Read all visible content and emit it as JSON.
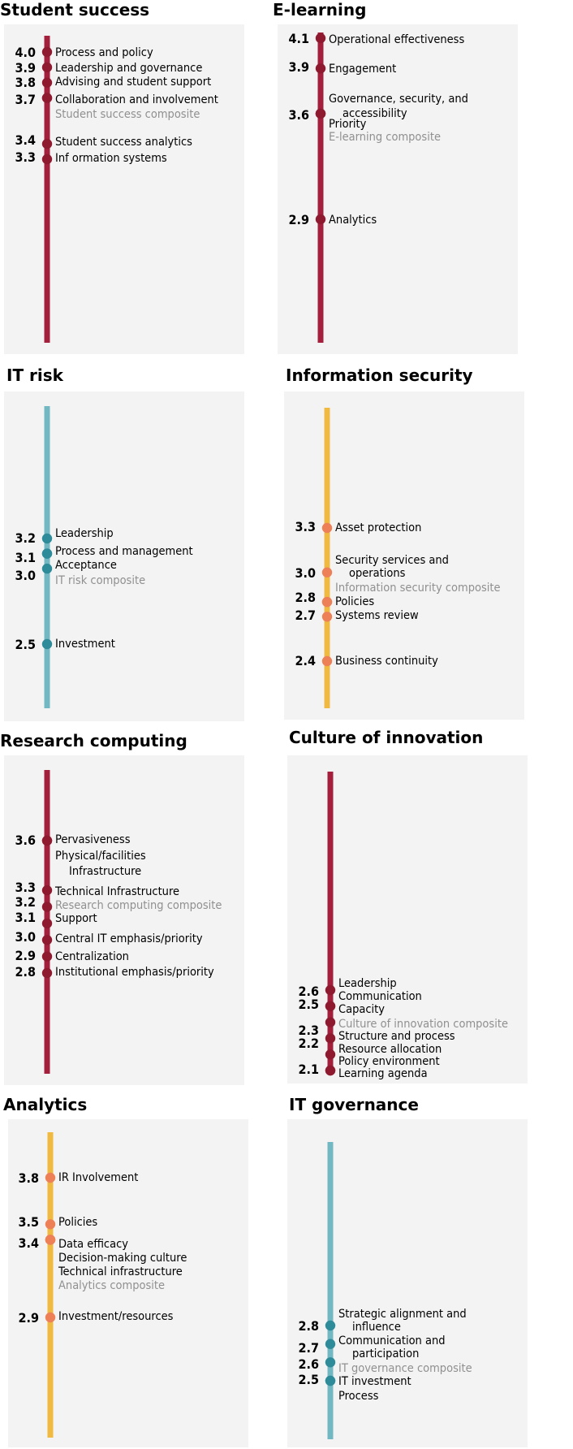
{
  "chart_data": [
    {
      "type": "dot-scale",
      "title": "Student success",
      "line_color": "#a31f3b",
      "dot_color": "#8f1a30",
      "points": [
        {
          "label": "Process and policy",
          "value": 4.0,
          "value_text": "4.0"
        },
        {
          "label": "Leadership and governance",
          "value": 3.9,
          "value_text": "3.9"
        },
        {
          "label": "Advising and student support",
          "value": 3.8,
          "value_text": "3.8"
        },
        {
          "label": "Collaboration and involvement",
          "value": 3.7,
          "value_text": "3.7"
        },
        {
          "label": "Student success composite",
          "value": 3.7,
          "composite": true
        },
        {
          "label": "Student success analytics",
          "value": 3.4,
          "value_text": "3.4"
        },
        {
          "label": "Inf ormation systems",
          "value": 3.3,
          "value_text": "3.3"
        }
      ]
    },
    {
      "type": "dot-scale",
      "title": "E-learning",
      "line_color": "#a31f3b",
      "dot_color": "#8f1a30",
      "points": [
        {
          "label": "Operational effectiveness",
          "value": 4.1,
          "value_text": "4.1"
        },
        {
          "label": "Engagement",
          "value": 3.9,
          "value_text": "3.9"
        },
        {
          "label": "Governance, security, and",
          "label2": "accessibility",
          "value": 3.6,
          "value_text": "3.6"
        },
        {
          "label": "Priority",
          "value": 3.6
        },
        {
          "label": "E-learning composite",
          "value": 3.6,
          "composite": true
        },
        {
          "label": "Analytics",
          "value": 2.9,
          "value_text": "2.9"
        }
      ]
    },
    {
      "type": "dot-scale",
      "title": "IT risk",
      "line_color": "#72b8c3",
      "dot_color": "#2e8c9a",
      "points": [
        {
          "label": "Leadership",
          "value": 3.2,
          "value_text": "3.2"
        },
        {
          "label": "Process and management",
          "value": 3.1,
          "value_text": "3.1"
        },
        {
          "label": "Acceptance",
          "value": 3.1
        },
        {
          "label": "IT risk composite",
          "value": 3.0,
          "value_text": "3.0",
          "composite": true
        },
        {
          "label": "Investment",
          "value": 2.5,
          "value_text": "2.5"
        }
      ]
    },
    {
      "type": "dot-scale",
      "title": "Information security",
      "line_color": "#f0b940",
      "dot_color": "#ee8058",
      "points": [
        {
          "label": "Asset protection",
          "value": 3.3,
          "value_text": "3.3"
        },
        {
          "label": "Security services and",
          "label2": "operations",
          "value": 3.0,
          "value_text": "3.0"
        },
        {
          "label": "Information security composite",
          "value": 2.8,
          "value_text": "2.8",
          "composite": true
        },
        {
          "label": "Policies",
          "value": 2.8
        },
        {
          "label": "Systems review",
          "value": 2.7,
          "value_text": "2.7"
        },
        {
          "label": "Business continuity",
          "value": 2.4,
          "value_text": "2.4"
        }
      ]
    },
    {
      "type": "dot-scale",
      "title": "Research computing",
      "line_color": "#a31f3b",
      "dot_color": "#8f1a30",
      "points": [
        {
          "label": "Pervasiveness",
          "value": 3.6,
          "value_text": "3.6"
        },
        {
          "label": "Physical/facilities",
          "label2": "Infrastructure",
          "value": 3.6
        },
        {
          "label": "Technical Infrastructure",
          "value": 3.3,
          "value_text": "3.3"
        },
        {
          "label": "Research computing composite",
          "value": 3.2,
          "value_text": "3.2",
          "composite": true
        },
        {
          "label": "Support",
          "value": 3.1,
          "value_text": "3.1"
        },
        {
          "label": "Central IT emphasis/priority",
          "value": 3.0,
          "value_text": "3.0"
        },
        {
          "label": "Centralization",
          "value": 2.9,
          "value_text": "2.9"
        },
        {
          "label": "Institutional emphasis/priority",
          "value": 2.8,
          "value_text": "2.8"
        }
      ]
    },
    {
      "type": "dot-scale",
      "title": "Culture of innovation",
      "line_color": "#a31f3b",
      "dot_color": "#8f1a30",
      "points": [
        {
          "label": "Leadership",
          "value": 2.6,
          "value_text": "2.6"
        },
        {
          "label": "Communication",
          "value": 2.5,
          "value_text": "2.5"
        },
        {
          "label": "Capacity",
          "value": 2.5
        },
        {
          "label": "Culture of innovation composite",
          "value": 2.4,
          "composite": true
        },
        {
          "label": "Structure and process",
          "value": 2.3,
          "value_text": "2.3"
        },
        {
          "label": "Resource allocation",
          "value": 2.2,
          "value_text": "2.2"
        },
        {
          "label": "Policy environment",
          "value": 2.1
        },
        {
          "label": "Learning agenda",
          "value": 2.1,
          "value_text": "2.1"
        }
      ]
    },
    {
      "type": "dot-scale",
      "title": "Analytics",
      "line_color": "#f0b940",
      "dot_color": "#ee8058",
      "points": [
        {
          "label": "IR Involvement",
          "value": 3.8,
          "value_text": "3.8"
        },
        {
          "label": "Policies",
          "value": 3.5,
          "value_text": "3.5"
        },
        {
          "label": "Data efficacy",
          "value": 3.4,
          "value_text": "3.4"
        },
        {
          "label": "Decision-making culture",
          "value": 3.4
        },
        {
          "label": "Technical infrastructure",
          "value": 3.4
        },
        {
          "label": "Analytics composite",
          "value": 3.4,
          "composite": true
        },
        {
          "label": "Investment/resources",
          "value": 2.9,
          "value_text": "2.9"
        }
      ]
    },
    {
      "type": "dot-scale",
      "title": "IT governance",
      "line_color": "#72b8c3",
      "dot_color": "#2e8c9a",
      "points": [
        {
          "label": "Strategic alignment and",
          "label2": "influence",
          "value": 2.8,
          "value_text": "2.8"
        },
        {
          "label": "Communication and",
          "label2": "participation",
          "value": 2.7,
          "value_text": "2.7"
        },
        {
          "label": "IT governance composite",
          "value": 2.6,
          "value_text": "2.6",
          "composite": true
        },
        {
          "label": "IT investment",
          "value": 2.5,
          "value_text": "2.5"
        },
        {
          "label": "Process",
          "value": 2.5
        }
      ]
    }
  ]
}
